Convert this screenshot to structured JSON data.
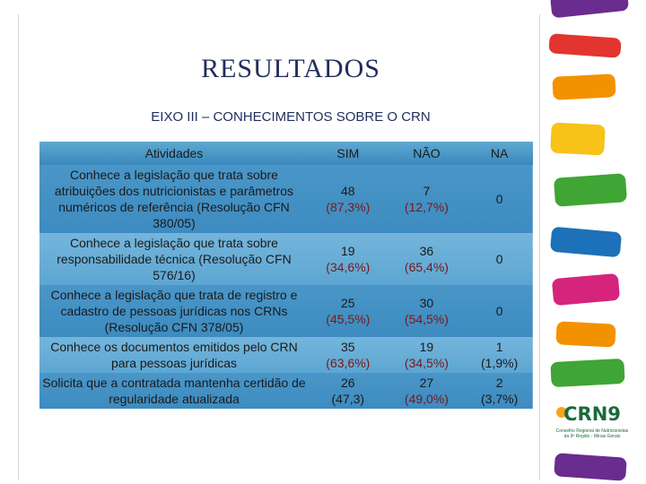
{
  "title": "RESULTADOS",
  "subtitle": "EIXO III – CONHECIMENTOS SOBRE O CRN",
  "table": {
    "headers": [
      "Atividades",
      "SIM",
      "NÃO",
      "NA"
    ],
    "rows": [
      {
        "activity": "Conhece a legislação que trata sobre atribuições dos nutricionistas e parâmetros numéricos de referência (Resolução CFN 380/05)",
        "sim": "48",
        "sim_pct": "(87,3%)",
        "nao": "7",
        "nao_pct": "(12,7%)",
        "na": "0",
        "na_pct": ""
      },
      {
        "activity": "Conhece a legislação que trata sobre responsabilidade técnica (Resolução CFN 576/16)",
        "sim": "19",
        "sim_pct": "(34,6%)",
        "nao": "36",
        "nao_pct": "(65,4%)",
        "na": "0",
        "na_pct": ""
      },
      {
        "activity": "Conhece a legislação que trata de registro e cadastro de pessoas jurídicas nos CRNs (Resolução CFN 378/05)",
        "sim": "25",
        "sim_pct": "(45,5%)",
        "nao": "30",
        "nao_pct": "(54,5%)",
        "na": "0",
        "na_pct": ""
      },
      {
        "activity": "Conhece os documentos emitidos pelo CRN para pessoas jurídicas",
        "sim": "35",
        "sim_pct": "(63,6%)",
        "nao": "19",
        "nao_pct": "(34,5%)",
        "na": "1",
        "na_pct": "(1,9%)"
      },
      {
        "activity": "Solicita que a contratada mantenha certidão de regularidade atualizada",
        "sim": "26",
        "sim_pct": "(47,3)",
        "nao": "27",
        "nao_pct": "(49,0%)",
        "na": "2",
        "na_pct": "(3,7%)"
      }
    ]
  },
  "logo": {
    "name": "CRN9",
    "caption": "Conselho Regional de Nutricionistas da 9ª Região - Minas Gerais"
  },
  "colors": {
    "title": "#1f2d5c",
    "table_header": "#4f9ccb",
    "table_row_dark": "#4390c4",
    "table_row_light": "#68afd8",
    "stripe_green": "#3fa535",
    "stripe_yellow": "#f7c319",
    "stripe_orange": "#f39200",
    "stripe_red": "#e3342f",
    "stripe_pink": "#d6247d",
    "stripe_purple": "#6a2c8e",
    "stripe_blue": "#1d71b8"
  }
}
